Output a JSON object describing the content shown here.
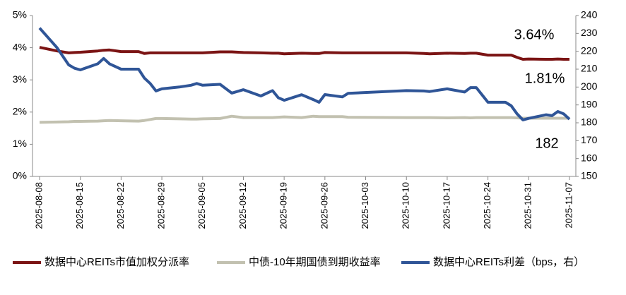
{
  "chart_data": {
    "type": "line",
    "x": [
      "2025-08-08",
      "2025-08-11",
      "2025-08-13",
      "2025-08-14",
      "2025-08-15",
      "2025-08-18",
      "2025-08-19",
      "2025-08-20",
      "2025-08-22",
      "2025-08-25",
      "2025-08-26",
      "2025-08-27",
      "2025-08-28",
      "2025-08-29",
      "2025-09-01",
      "2025-09-03",
      "2025-09-04",
      "2025-09-05",
      "2025-09-08",
      "2025-09-10",
      "2025-09-12",
      "2025-09-15",
      "2025-09-17",
      "2025-09-18",
      "2025-09-19",
      "2025-09-22",
      "2025-09-24",
      "2025-09-25",
      "2025-09-26",
      "2025-09-29",
      "2025-09-30",
      "2025-10-10",
      "2025-10-13",
      "2025-10-14",
      "2025-10-17",
      "2025-10-20",
      "2025-10-21",
      "2025-10-22",
      "2025-10-24",
      "2025-10-27",
      "2025-10-28",
      "2025-10-29",
      "2025-10-30",
      "2025-10-31",
      "2025-11-03",
      "2025-11-04",
      "2025-11-05",
      "2025-11-06",
      "2025-11-07"
    ],
    "series": [
      {
        "name": "数据中心REITs市值加权分派率",
        "color": "#7b1414",
        "end_label": "3.64%",
        "values": [
          4.01,
          3.9,
          3.84,
          3.85,
          3.86,
          3.9,
          3.92,
          3.93,
          3.88,
          3.88,
          3.82,
          3.84,
          3.84,
          3.84,
          3.84,
          3.84,
          3.84,
          3.84,
          3.87,
          3.87,
          3.85,
          3.84,
          3.83,
          3.83,
          3.81,
          3.83,
          3.82,
          3.82,
          3.85,
          3.84,
          3.84,
          3.84,
          3.82,
          3.81,
          3.83,
          3.82,
          3.83,
          3.83,
          3.77,
          3.77,
          3.77,
          3.7,
          3.64,
          3.65,
          3.64,
          3.64,
          3.65,
          3.64,
          3.64
        ]
      },
      {
        "name": "中债-10年期国债到期收益率",
        "color": "#c2c1b0",
        "end_label": "1.81%",
        "values": [
          1.68,
          1.69,
          1.7,
          1.71,
          1.71,
          1.72,
          1.73,
          1.74,
          1.73,
          1.72,
          1.74,
          1.77,
          1.8,
          1.8,
          1.79,
          1.78,
          1.78,
          1.79,
          1.8,
          1.87,
          1.83,
          1.83,
          1.83,
          1.84,
          1.85,
          1.83,
          1.87,
          1.86,
          1.86,
          1.86,
          1.84,
          1.83,
          1.83,
          1.83,
          1.82,
          1.83,
          1.82,
          1.83,
          1.83,
          1.83,
          1.83,
          1.82,
          1.81,
          1.81,
          1.81,
          1.81,
          1.81,
          1.81,
          1.81
        ]
      },
      {
        "name": "数据中心REITs利差（bps，右）",
        "color": "#2f5597",
        "axis": "y2",
        "end_label": "182",
        "values": [
          233,
          222,
          212.4,
          210.5,
          209.6,
          213,
          216,
          213,
          210,
          210,
          205,
          202,
          197.8,
          199,
          200,
          201,
          202,
          201,
          201.5,
          196.6,
          198.5,
          195,
          198,
          194,
          192.6,
          195.7,
          193,
          191.5,
          195.8,
          194.5,
          196.5,
          198,
          197.8,
          197.5,
          199,
          197.2,
          199.7,
          199.7,
          191.5,
          191.5,
          189.5,
          185,
          181.6,
          182.5,
          184.5,
          184,
          186.3,
          185,
          182
        ]
      }
    ],
    "xlim": [
      "2025-08-08",
      "2025-11-07"
    ],
    "xticks": [
      "2025-08-08",
      "2025-08-15",
      "2025-08-22",
      "2025-08-29",
      "2025-09-05",
      "2025-09-12",
      "2025-09-19",
      "2025-09-26",
      "2025-10-03",
      "2025-10-10",
      "2025-10-17",
      "2025-10-24",
      "2025-10-31",
      "2025-11-07"
    ],
    "ylim": [
      0,
      5
    ],
    "yticks": [
      {
        "value": 0,
        "label": "0%"
      },
      {
        "value": 1,
        "label": "1%"
      },
      {
        "value": 2,
        "label": "2%"
      },
      {
        "value": 3,
        "label": "3%"
      },
      {
        "value": 4,
        "label": "4%"
      },
      {
        "value": 5,
        "label": "5%"
      }
    ],
    "y2lim": [
      150,
      240
    ],
    "y2ticks": [
      150,
      160,
      170,
      180,
      190,
      200,
      210,
      220,
      230,
      240
    ],
    "legend": "bottom"
  }
}
